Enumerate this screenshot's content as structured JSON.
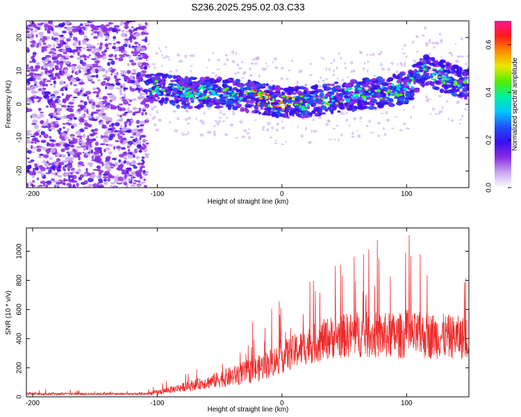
{
  "chart_data": [
    {
      "type": "heatmap",
      "title": "S236.2025.295.02.03.C33",
      "xlabel": "Height of straight line (km)",
      "ylabel": "Frequency (Hz)",
      "xlim": [
        -205,
        150
      ],
      "ylim": [
        -25,
        25
      ],
      "x_ticks": [
        -200,
        -100,
        0,
        100
      ],
      "y_ticks": [
        -20,
        -10,
        0,
        10,
        20
      ],
      "band": {
        "x_start": -108,
        "knots_x": [
          -108,
          -80,
          -50,
          -20,
          0,
          20,
          50,
          80,
          100,
          115,
          150
        ],
        "knots_center_hz": [
          5.5,
          3.5,
          3.5,
          2,
          0.5,
          0.5,
          2.5,
          3.5,
          5,
          10,
          6
        ]
      },
      "noise_region": {
        "x_start": -205,
        "x_end": -108
      },
      "colorbar": {
        "label": "Normalized spectral amplitude",
        "range": [
          0,
          0.7
        ],
        "ticks": [
          "0.0",
          "0.2",
          "0.4",
          "0.6"
        ],
        "colors": [
          "#ffffff",
          "#c9a8f0",
          "#8a2be2",
          "#3a0ff0",
          "#1f4ff5",
          "#00c8ff",
          "#00f0a0",
          "#55ee00",
          "#e8e800",
          "#ff8c00",
          "#ff1a1a",
          "#ff1493"
        ]
      }
    },
    {
      "type": "line",
      "xlabel": "Height of straight line (km)",
      "ylabel": "SNR (10 * v/v)",
      "xlim": [
        -205,
        150
      ],
      "ylim": [
        0,
        1160
      ],
      "x_ticks": [
        -200,
        -100,
        0,
        100
      ],
      "y_ticks": [
        0,
        200,
        400,
        600,
        800,
        1000
      ],
      "color": "#ee2a2a",
      "envelope": {
        "x": [
          -205,
          -110,
          -100,
          -80,
          -60,
          -40,
          -20,
          0,
          20,
          40,
          60,
          80,
          100,
          120,
          140,
          150
        ],
        "mean": [
          20,
          20,
          30,
          65,
          100,
          140,
          190,
          270,
          350,
          410,
          430,
          420,
          420,
          420,
          410,
          400
        ],
        "spread": [
          8,
          8,
          18,
          30,
          45,
          70,
          90,
          110,
          130,
          150,
          160,
          160,
          160,
          160,
          150,
          150
        ]
      }
    }
  ]
}
